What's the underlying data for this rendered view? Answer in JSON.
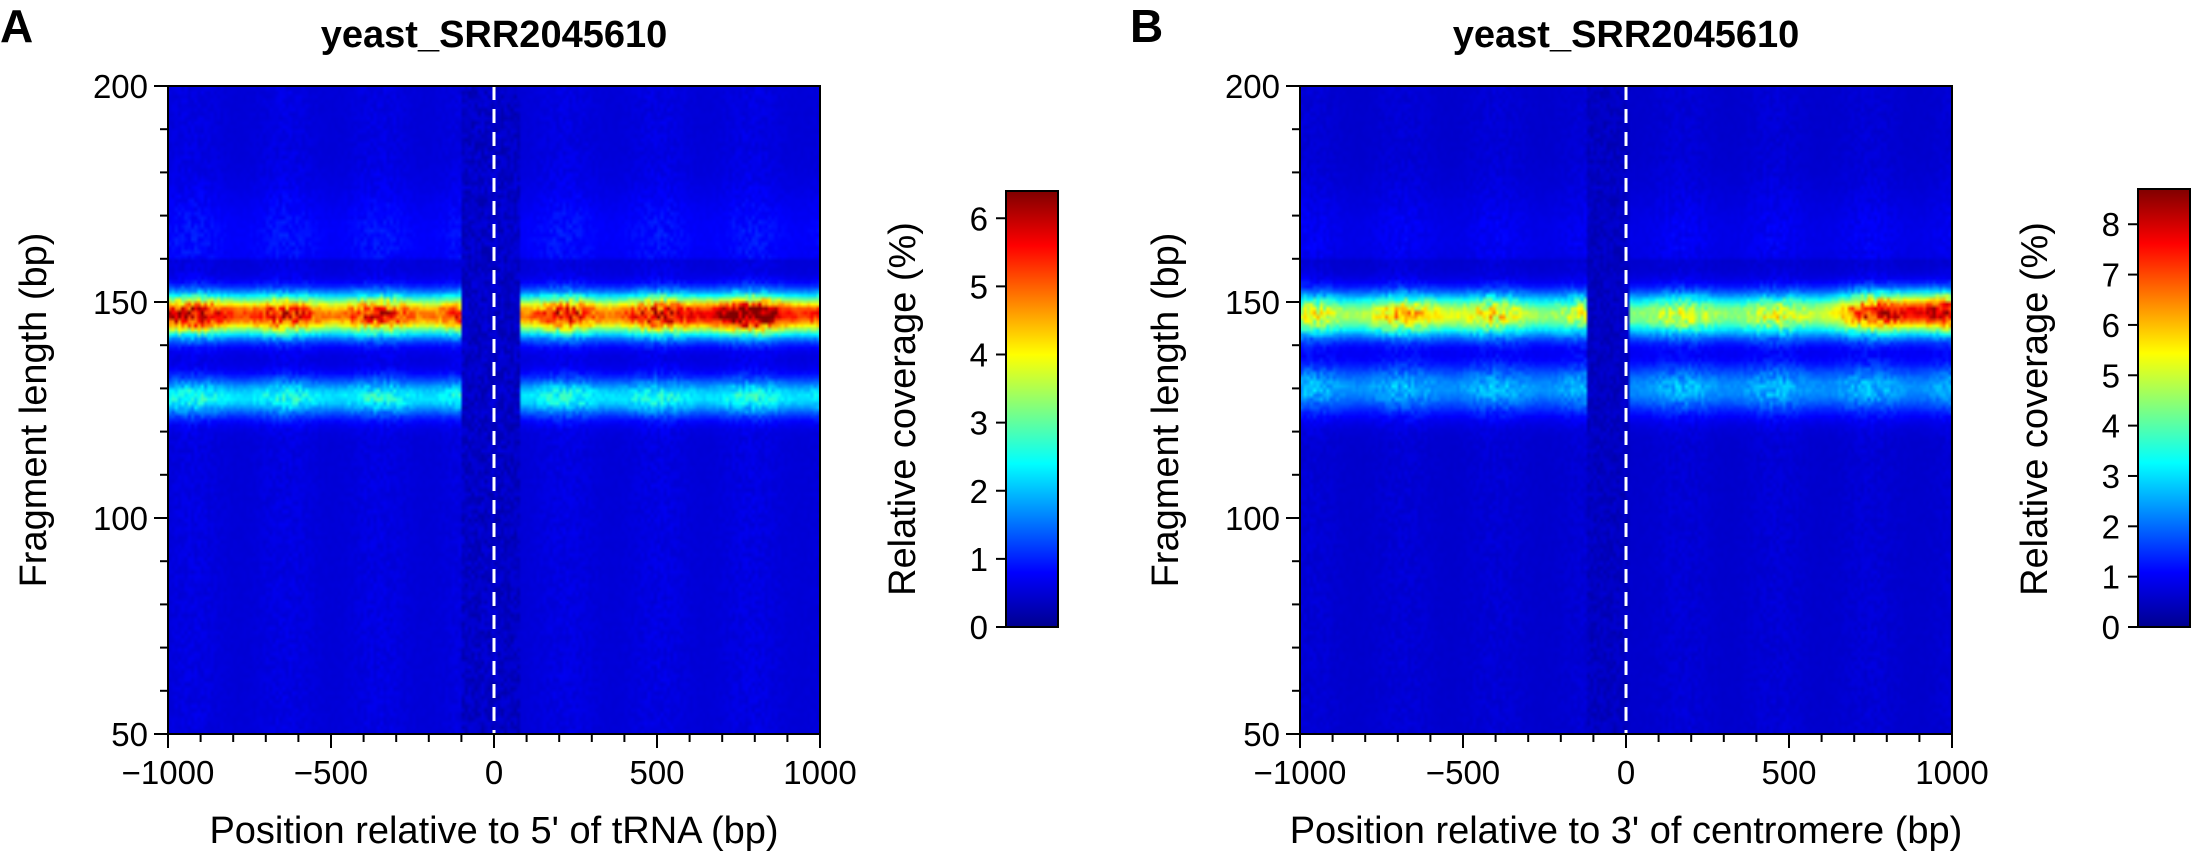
{
  "chart_data": [
    {
      "type": "heatmap",
      "panel_letter": "A",
      "title": "yeast_SRR2045610",
      "xlabel": "Position relative to 5' of tRNA (bp)",
      "ylabel": "Fragment length (bp)",
      "xlim": [
        -1000,
        1000
      ],
      "ylim": [
        50,
        200
      ],
      "x_ticks": [
        {
          "value": -1000,
          "label": "−1000"
        },
        {
          "value": -500,
          "label": "−500"
        },
        {
          "value": 0,
          "label": "0"
        },
        {
          "value": 500,
          "label": "500"
        },
        {
          "value": 1000,
          "label": "1000"
        }
      ],
      "y_ticks": [
        {
          "value": 50,
          "label": "50"
        },
        {
          "value": 100,
          "label": "100"
        },
        {
          "value": 150,
          "label": "150"
        },
        {
          "value": 200,
          "label": "200"
        }
      ],
      "reference_line_x": 0,
      "colorbar": {
        "label": "Relative coverage (%)",
        "min": 0,
        "max": 6.4,
        "ticks": [
          {
            "value": 0,
            "label": "0"
          },
          {
            "value": 1,
            "label": "1"
          },
          {
            "value": 2,
            "label": "2"
          },
          {
            "value": 3,
            "label": "3"
          },
          {
            "value": 4,
            "label": "4"
          },
          {
            "value": 5,
            "label": "5"
          },
          {
            "value": 6,
            "label": "6"
          }
        ]
      },
      "features": {
        "background": 0.6,
        "bands": [
          {
            "y": 147,
            "sigma": 3.2,
            "peak": 5.0
          },
          {
            "y": 128,
            "sigma": 3.0,
            "peak": 2.0
          }
        ],
        "hotspots": [
          {
            "x": 750,
            "y": 147,
            "value": 6.3
          },
          {
            "x": -900,
            "y": 147,
            "value": 5.6
          }
        ],
        "depletion": {
          "from_x": -100,
          "to_x": 80,
          "level": 0.2
        }
      }
    },
    {
      "type": "heatmap",
      "panel_letter": "B",
      "title": "yeast_SRR2045610",
      "xlabel": "Position relative to 3' of centromere (bp)",
      "ylabel": "Fragment length (bp)",
      "xlim": [
        -1000,
        1000
      ],
      "ylim": [
        50,
        200
      ],
      "x_ticks": [
        {
          "value": -1000,
          "label": "−1000"
        },
        {
          "value": -500,
          "label": "−500"
        },
        {
          "value": 0,
          "label": "0"
        },
        {
          "value": 500,
          "label": "500"
        },
        {
          "value": 1000,
          "label": "1000"
        }
      ],
      "y_ticks": [
        {
          "value": 50,
          "label": "50"
        },
        {
          "value": 100,
          "label": "100"
        },
        {
          "value": 150,
          "label": "150"
        },
        {
          "value": 200,
          "label": "200"
        }
      ],
      "reference_line_x": 0,
      "colorbar": {
        "label": "Relative coverage (%)",
        "min": 0,
        "max": 8.7,
        "ticks": [
          {
            "value": 0,
            "label": "0"
          },
          {
            "value": 1,
            "label": "1"
          },
          {
            "value": 2,
            "label": "2"
          },
          {
            "value": 3,
            "label": "3"
          },
          {
            "value": 4,
            "label": "4"
          },
          {
            "value": 5,
            "label": "5"
          },
          {
            "value": 6,
            "label": "6"
          },
          {
            "value": 7,
            "label": "7"
          },
          {
            "value": 8,
            "label": "8"
          }
        ]
      },
      "features": {
        "background": 0.7,
        "bands": [
          {
            "y": 147,
            "sigma": 3.5,
            "peak": 4.5
          },
          {
            "y": 130,
            "sigma": 4.0,
            "peak": 2.0
          }
        ],
        "hotspots": [
          {
            "x": 900,
            "y": 148,
            "value": 8.5
          },
          {
            "x": -600,
            "y": 147,
            "value": 5.5
          }
        ],
        "depletion": {
          "from_x": -120,
          "to_x": 10,
          "level": 0.3
        }
      }
    }
  ]
}
